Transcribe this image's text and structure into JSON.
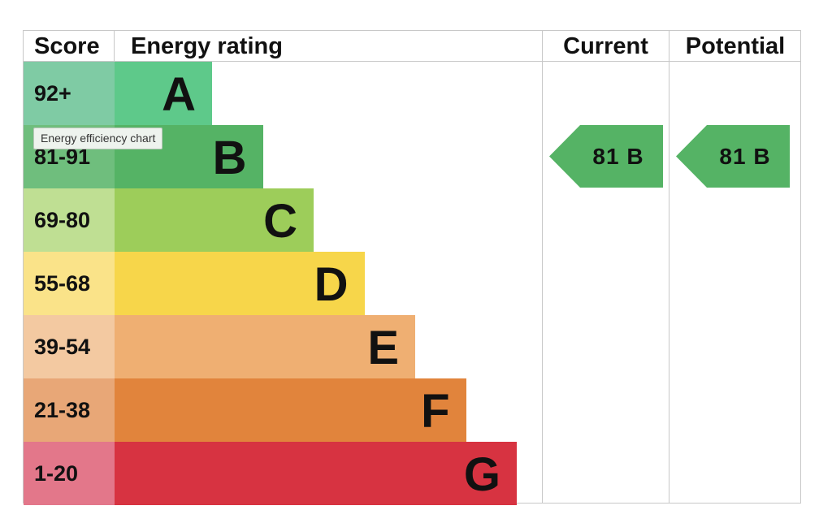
{
  "chart_data": {
    "type": "bar",
    "header": {
      "score": "Score",
      "rating": "Energy rating",
      "current": "Current",
      "potential": "Potential"
    },
    "bands": [
      {
        "score": "92+",
        "letter": "A",
        "bar_color": "#5ec98a",
        "score_bg": "#7fcba4",
        "relative_length": 1
      },
      {
        "score": "81-91",
        "letter": "B",
        "bar_color": "#55b365",
        "score_bg": "#6fbe7d",
        "relative_length": 2
      },
      {
        "score": "69-80",
        "letter": "C",
        "bar_color": "#9dcd5a",
        "score_bg": "#bfdf93",
        "relative_length": 3
      },
      {
        "score": "55-68",
        "letter": "D",
        "bar_color": "#f7d64a",
        "score_bg": "#fae389",
        "relative_length": 4
      },
      {
        "score": "39-54",
        "letter": "E",
        "bar_color": "#efaf72",
        "score_bg": "#f3c9a1",
        "relative_length": 5
      },
      {
        "score": "21-38",
        "letter": "F",
        "bar_color": "#e1843c",
        "score_bg": "#e8a777",
        "relative_length": 6
      },
      {
        "score": "1-20",
        "letter": "G",
        "bar_color": "#d73341",
        "score_bg": "#e3778a",
        "relative_length": 7
      }
    ],
    "current": {
      "value": 81,
      "band": "B",
      "label": "81  B",
      "color": "#55b365"
    },
    "potential": {
      "value": 81,
      "band": "B",
      "label": "81  B",
      "color": "#55b365"
    }
  },
  "tooltip": "Energy efficiency chart"
}
